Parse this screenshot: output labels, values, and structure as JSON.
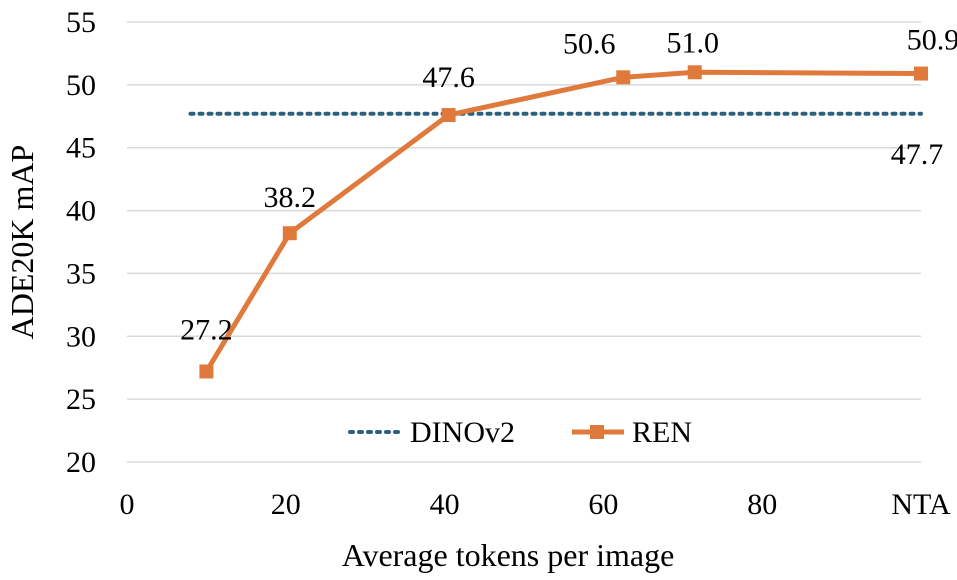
{
  "chart_data": {
    "type": "line",
    "xlabel": "Average tokens per image",
    "ylabel": "ADE20K mAP",
    "ylim": [
      20,
      55
    ],
    "yticks": [
      "20",
      "25",
      "30",
      "35",
      "40",
      "45",
      "50",
      "55"
    ],
    "xlim": [
      0,
      100
    ],
    "xticks": [
      {
        "value": 0,
        "label": "0"
      },
      {
        "value": 20,
        "label": "20"
      },
      {
        "value": 40,
        "label": "40"
      },
      {
        "value": 60,
        "label": "60"
      },
      {
        "value": 80,
        "label": "80"
      },
      {
        "value": 100,
        "label": "NTA"
      }
    ],
    "grid": "horizontal",
    "legend_position": "bottom-center",
    "series": [
      {
        "name": "DINOv2",
        "style": "dotted",
        "color": "#2e5f7c",
        "x": [
          8,
          100
        ],
        "y": [
          47.7,
          47.7
        ],
        "labels": [
          {
            "text": "47.7",
            "x": 100,
            "y": 47.7
          }
        ]
      },
      {
        "name": "REN",
        "style": "solid-square-markers",
        "color": "#e07a3c",
        "x": [
          10,
          20.5,
          40.5,
          62.5,
          71.5,
          100
        ],
        "y": [
          27.2,
          38.2,
          47.6,
          50.6,
          51.0,
          50.9
        ],
        "labels": [
          {
            "text": "27.2",
            "x": 10,
            "y": 27.2
          },
          {
            "text": "38.2",
            "x": 20.5,
            "y": 38.2
          },
          {
            "text": "47.6",
            "x": 40.5,
            "y": 47.6
          },
          {
            "text": "50.6",
            "x": 62.5,
            "y": 50.6
          },
          {
            "text": "51.0",
            "x": 71.5,
            "y": 51.0
          },
          {
            "text": "50.9",
            "x": 100,
            "y": 50.9
          }
        ]
      }
    ]
  }
}
